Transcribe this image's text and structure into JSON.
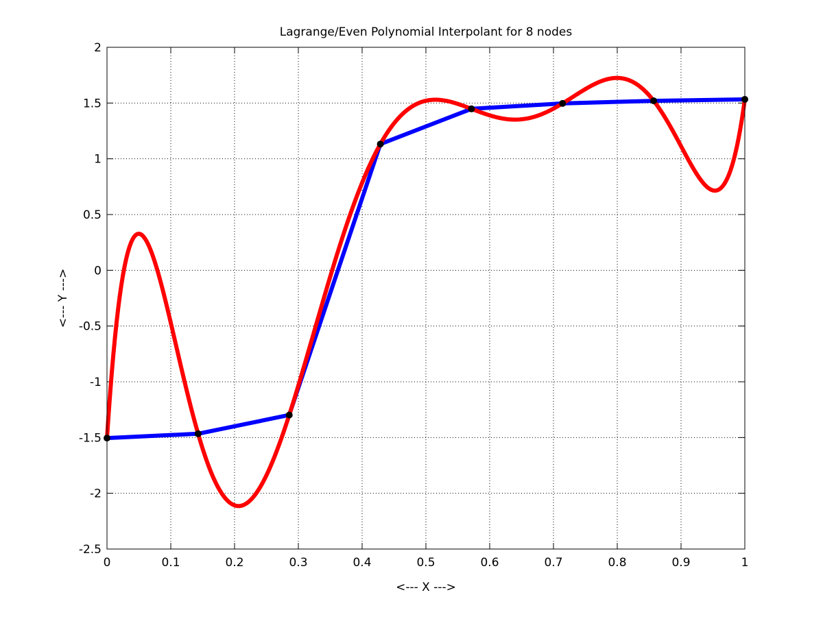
{
  "chart_data": {
    "type": "line",
    "title": "Lagrange/Even Polynomial Interpolant for 8 nodes",
    "xlabel": "<--- X --->",
    "ylabel": "<--- Y --->",
    "xlim": [
      0,
      1
    ],
    "ylim": [
      -2.5,
      2
    ],
    "grid": true,
    "x_ticks": [
      0,
      0.1,
      0.2,
      0.3,
      0.4,
      0.5,
      0.6,
      0.7,
      0.8,
      0.9,
      1
    ],
    "x_tick_labels": [
      "0",
      "0.1",
      "0.2",
      "0.3",
      "0.4",
      "0.5",
      "0.6",
      "0.7",
      "0.8",
      "0.9",
      "1"
    ],
    "y_ticks": [
      -2.5,
      -2,
      -1.5,
      -1,
      -0.5,
      0,
      0.5,
      1,
      1.5,
      2
    ],
    "y_tick_labels": [
      "-2.5",
      "-2",
      "-1.5",
      "-1",
      "-0.5",
      "0",
      "0.5",
      "1",
      "1.5",
      "2"
    ],
    "nodes": {
      "x": [
        0,
        0.142857,
        0.285714,
        0.428571,
        0.571429,
        0.714286,
        0.857143,
        1
      ],
      "y": [
        -1.505,
        -1.466,
        -1.298,
        1.132,
        1.448,
        1.497,
        1.52,
        1.533
      ]
    },
    "series": [
      {
        "color": "#0000ff",
        "x": [
          0,
          0.142857,
          0.285714,
          0.428571,
          0.571429,
          0.714286,
          0.857143,
          1
        ],
        "y": [
          -1.505,
          -1.466,
          -1.298,
          1.132,
          1.448,
          1.497,
          1.52,
          1.533
        ]
      },
      {
        "color": "#ff0000",
        "x": [
          0,
          0.142857,
          0.285714,
          0.428571,
          0.571429,
          0.714286,
          0.857143,
          1
        ],
        "y": [
          -1.505,
          -1.466,
          -1.298,
          1.132,
          1.448,
          1.497,
          1.52,
          1.533
        ]
      }
    ]
  }
}
